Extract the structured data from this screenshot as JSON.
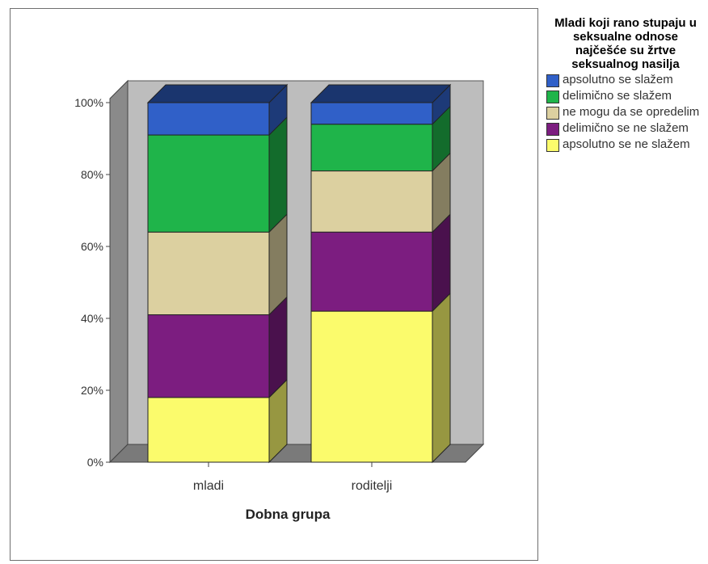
{
  "chart_data": {
    "type": "bar",
    "stacked": true,
    "percent": true,
    "three_d": true,
    "xlabel": "Dobna grupa",
    "categories": [
      "mladi",
      "roditelji"
    ],
    "yticks": [
      "0%",
      "20%",
      "40%",
      "60%",
      "80%",
      "100%"
    ],
    "ylim": [
      0,
      100
    ],
    "legend_title": "Mladi koji rano stupaju u seksualne odnose najčešće su žrtve seksualnog nasilja",
    "legend_position": "right",
    "series": [
      {
        "name": "apsolutno se ne slažem",
        "color": "#fbfb6c",
        "values": [
          18,
          42
        ]
      },
      {
        "name": "delimično se ne slažem",
        "color": "#7c1d80",
        "values": [
          23,
          22
        ]
      },
      {
        "name": "ne mogu da se opredelim",
        "color": "#dcd0a0",
        "values": [
          23,
          17
        ]
      },
      {
        "name": "delimično se slažem",
        "color": "#1fb44a",
        "values": [
          27,
          13
        ]
      },
      {
        "name": "apsolutno se slažem",
        "color": "#3060c8",
        "values": [
          9,
          6
        ]
      }
    ],
    "legend_order": [
      4,
      3,
      2,
      1,
      0
    ]
  }
}
